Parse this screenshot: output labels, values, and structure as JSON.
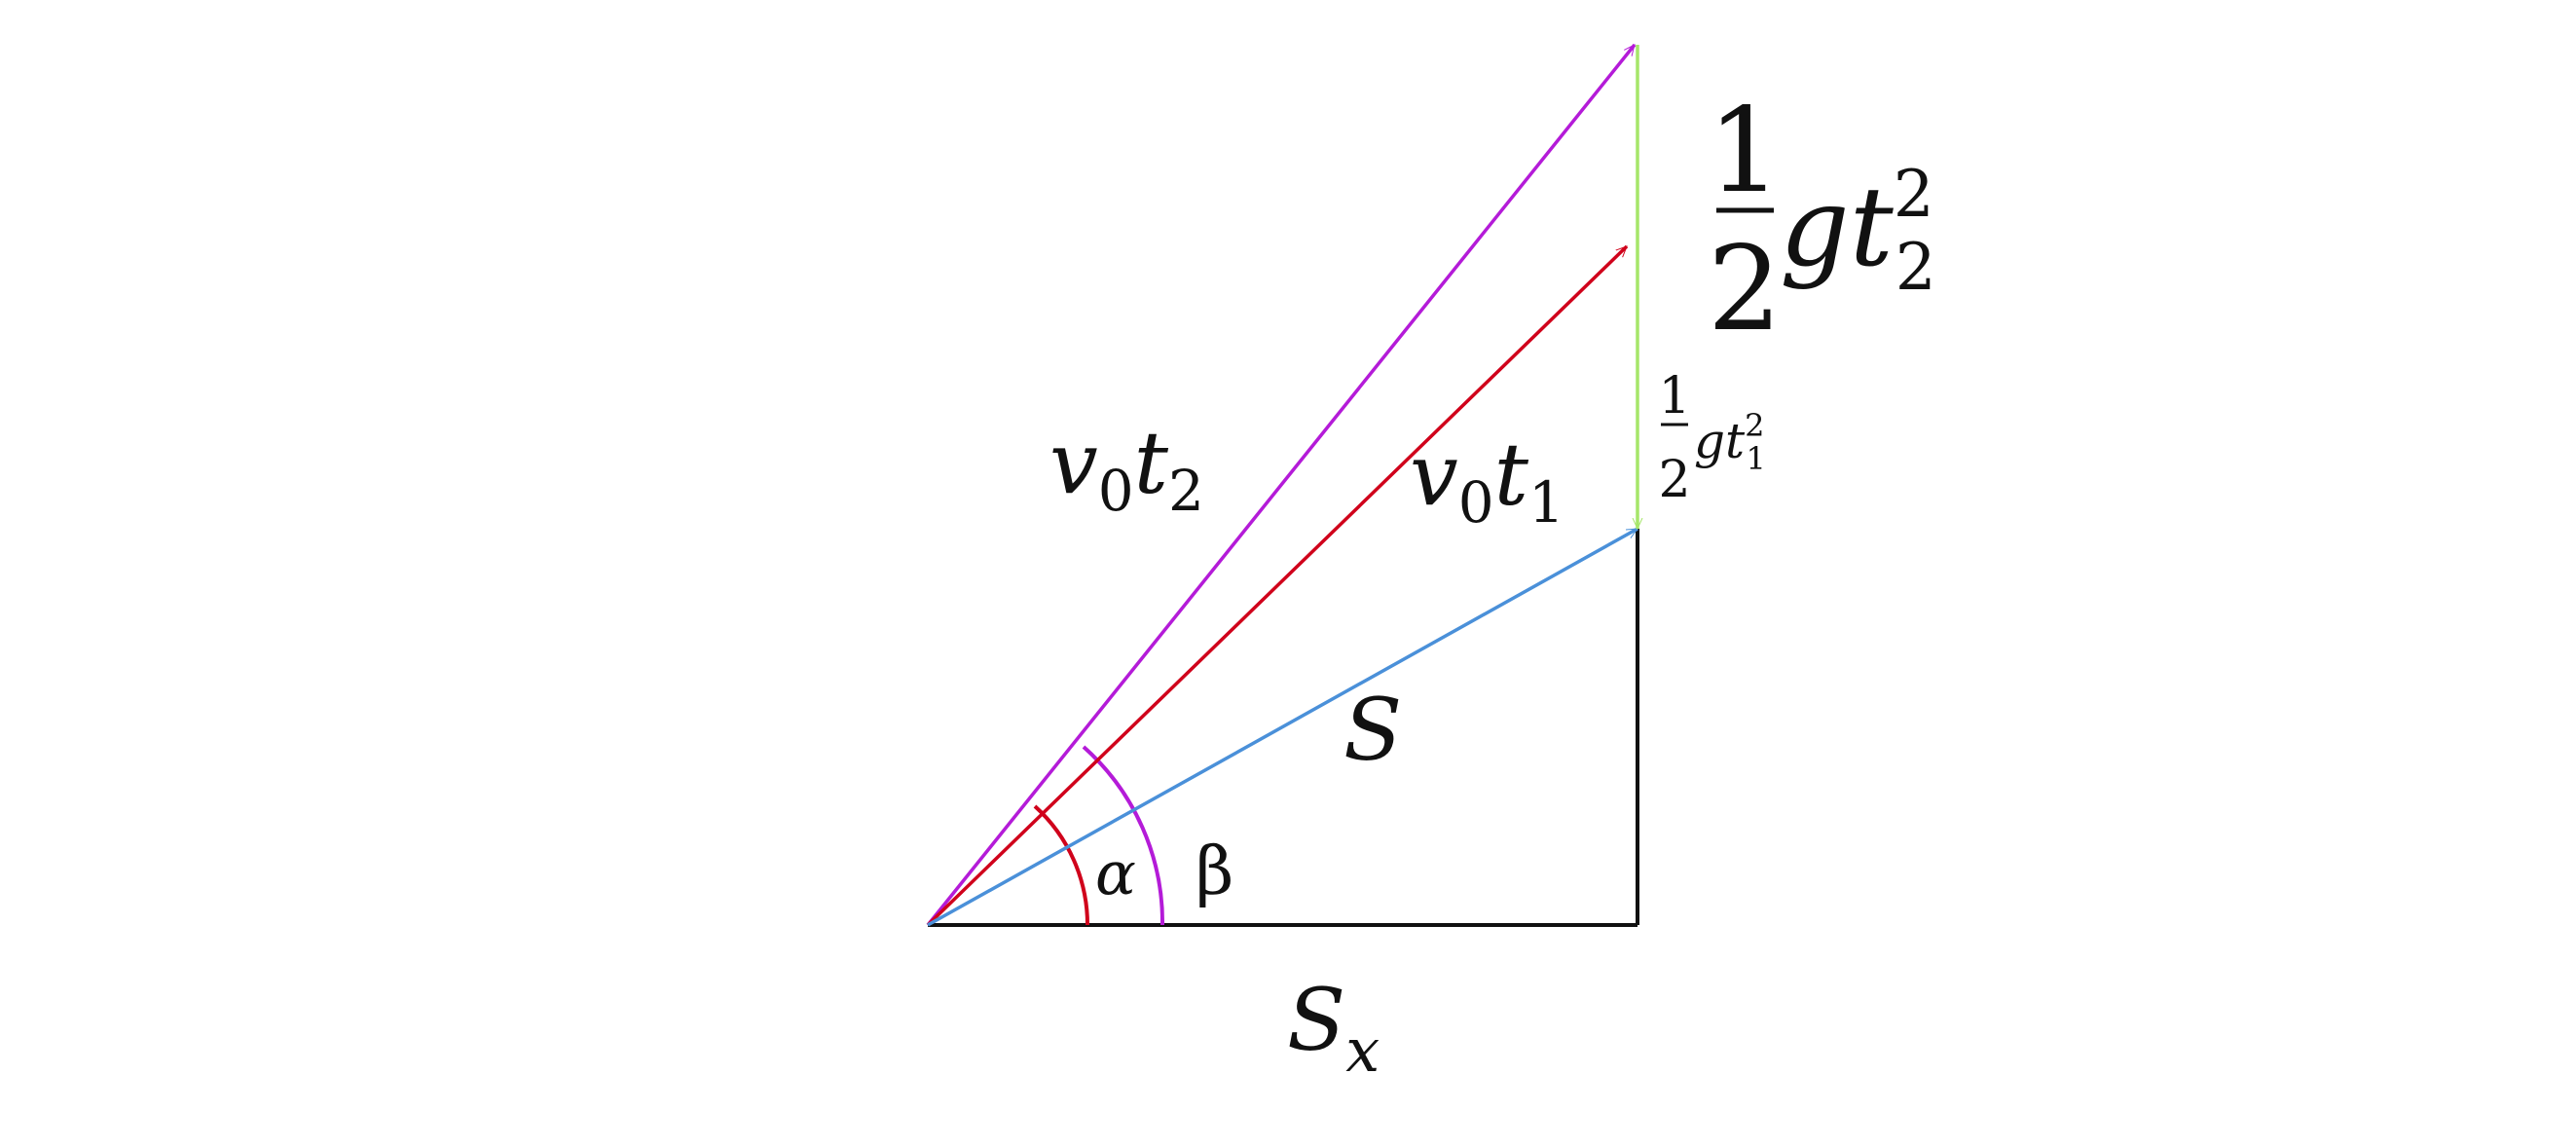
{
  "labels": {
    "v0t2": [
      "v",
      "0",
      "t",
      "2"
    ],
    "v0t1": [
      "v",
      "0",
      "t",
      "1"
    ],
    "S": "S",
    "Sx": [
      "S",
      "x"
    ],
    "alpha": "α",
    "beta": "β",
    "half_g_t2_sq": {
      "numerator": "1",
      "denominator": "2",
      "g": "g",
      "t": "t",
      "sub": "2",
      "sup": "2"
    },
    "half_g_t1_sq": {
      "numerator": "1",
      "denominator": "2",
      "g": "g",
      "t": "t",
      "sub": "1",
      "sup": "2"
    }
  }
}
